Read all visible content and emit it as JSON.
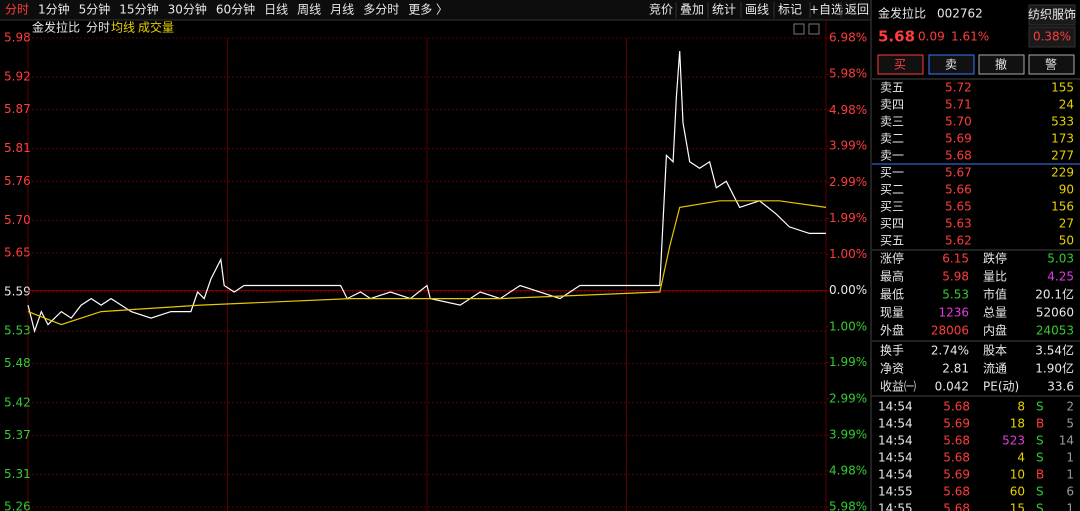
{
  "toolbar": {
    "periods": [
      "分时",
      "1分钟",
      "5分钟",
      "15分钟",
      "30分钟",
      "60分钟",
      "日线",
      "周线",
      "月线",
      "多分时",
      "更多 〉"
    ],
    "tools": [
      "竞价",
      "叠加",
      "统计",
      "画线",
      "标记",
      "+自选",
      "返回"
    ]
  },
  "chart_data": {
    "type": "line",
    "title": "金发拉比",
    "subtitle": "成交量",
    "series": [
      {
        "name": "分时",
        "color": "#ffffff",
        "x": [
          0,
          2,
          4,
          6,
          10,
          13,
          16,
          19,
          22,
          25,
          31,
          37,
          43,
          49,
          51,
          53,
          55,
          58,
          59,
          62,
          65,
          70,
          94,
          96,
          100,
          103,
          109,
          115,
          120,
          121,
          130,
          136,
          142,
          148,
          160,
          166,
          190,
          192,
          194,
          195,
          196,
          197,
          199,
          202,
          205,
          207,
          210,
          214,
          220,
          225,
          229,
          235,
          240
        ],
        "values": [
          5.57,
          5.53,
          5.56,
          5.54,
          5.56,
          5.55,
          5.57,
          5.58,
          5.57,
          5.58,
          5.56,
          5.55,
          5.56,
          5.56,
          5.59,
          5.58,
          5.61,
          5.64,
          5.6,
          5.59,
          5.6,
          5.6,
          5.6,
          5.58,
          5.59,
          5.58,
          5.59,
          5.58,
          5.6,
          5.58,
          5.57,
          5.59,
          5.58,
          5.6,
          5.58,
          5.6,
          5.6,
          5.8,
          5.79,
          5.89,
          5.96,
          5.85,
          5.79,
          5.78,
          5.79,
          5.75,
          5.76,
          5.72,
          5.73,
          5.71,
          5.69,
          5.68,
          5.68
        ]
      },
      {
        "name": "均线",
        "color": "#e6c800",
        "x": [
          0,
          10,
          22,
          52,
          97,
          142,
          190,
          193,
          196,
          208,
          226,
          240
        ],
        "values": [
          5.56,
          5.54,
          5.56,
          5.57,
          5.58,
          5.58,
          5.59,
          5.66,
          5.72,
          5.73,
          5.73,
          5.72
        ]
      }
    ],
    "xlim": [
      0,
      240
    ],
    "ylim": [
      5.26,
      5.98
    ],
    "yticks": [
      {
        "value": 5.98,
        "label": "5.98"
      },
      {
        "value": 5.92,
        "label": "5.92"
      },
      {
        "value": 5.87,
        "label": "5.87"
      },
      {
        "value": 5.81,
        "label": "5.81"
      },
      {
        "value": 5.76,
        "label": "5.76"
      },
      {
        "value": 5.7,
        "label": "5.70"
      },
      {
        "value": 5.65,
        "label": "5.65"
      },
      {
        "value": 5.59,
        "label": "5.59"
      },
      {
        "value": 5.53,
        "label": "5.53"
      },
      {
        "value": 5.48,
        "label": "5.48"
      },
      {
        "value": 5.42,
        "label": "5.42"
      },
      {
        "value": 5.37,
        "label": "5.37"
      },
      {
        "value": 5.31,
        "label": "5.31"
      },
      {
        "value": 5.26,
        "label": "5.26"
      }
    ],
    "y2lim": [
      -5.98,
      6.98
    ],
    "y2ticks": [
      {
        "value": 6.98,
        "label": "6.98%"
      },
      {
        "value": 5.98,
        "label": "5.98%"
      },
      {
        "value": 4.98,
        "label": "4.98%"
      },
      {
        "value": 3.99,
        "label": "3.99%"
      },
      {
        "value": 2.99,
        "label": "2.99%"
      },
      {
        "value": 1.99,
        "label": "1.99%"
      },
      {
        "value": 1.0,
        "label": "1.00%"
      },
      {
        "value": 0,
        "label": "0.00%"
      },
      {
        "value": -1.0,
        "label": "1.00%"
      },
      {
        "value": -1.99,
        "label": "1.99%"
      },
      {
        "value": -2.99,
        "label": "2.99%"
      },
      {
        "value": -3.99,
        "label": "3.99%"
      },
      {
        "value": -4.98,
        "label": "4.98%"
      },
      {
        "value": -5.98,
        "label": "5.98%"
      }
    ],
    "grid": true
  },
  "quote": {
    "name": "金发拉比",
    "code": "002762",
    "sector": "纺织服饰",
    "price": "5.68",
    "change": "0.09",
    "percent": "1.61%",
    "sector_change": "0.38%"
  },
  "buttons": [
    "买",
    "卖",
    "撤",
    "警"
  ],
  "asks": [
    [
      "卖五",
      "5.72",
      "155"
    ],
    [
      "卖四",
      "5.71",
      "24"
    ],
    [
      "卖三",
      "5.70",
      "533"
    ],
    [
      "卖二",
      "5.69",
      "173"
    ],
    [
      "卖一",
      "5.68",
      "277"
    ]
  ],
  "bids": [
    [
      "买一",
      "5.67",
      "229"
    ],
    [
      "买二",
      "5.66",
      "90"
    ],
    [
      "买三",
      "5.65",
      "156"
    ],
    [
      "买四",
      "5.63",
      "27"
    ],
    [
      "买五",
      "5.62",
      "50"
    ]
  ],
  "stats": [
    [
      "涨停",
      "6.15",
      "跌停",
      "5.03"
    ],
    [
      "最高",
      "5.98",
      "量比",
      "4.25"
    ],
    [
      "最低",
      "5.53",
      "市值",
      "20.1亿"
    ],
    [
      "现量",
      "1236",
      "总量",
      "52060"
    ],
    [
      "外盘",
      "28006",
      "内盘",
      "24053"
    ]
  ],
  "fundamentals": [
    [
      "换手",
      "2.74%",
      "股本",
      "3.54亿"
    ],
    [
      "净资",
      "2.81",
      "流通",
      "1.90亿"
    ],
    [
      "收益㈠",
      "0.042",
      "PE(动)",
      "33.6"
    ]
  ],
  "trades": [
    [
      "14:54",
      "5.68",
      "8",
      "S",
      "2"
    ],
    [
      "14:54",
      "5.69",
      "18",
      "B",
      "5"
    ],
    [
      "14:54",
      "5.68",
      "523",
      "S",
      "14"
    ],
    [
      "14:54",
      "5.68",
      "4",
      "S",
      "1"
    ],
    [
      "14:54",
      "5.69",
      "10",
      "B",
      "1"
    ],
    [
      "14:55",
      "5.68",
      "60",
      "S",
      "6"
    ],
    [
      "14:55",
      "5.68",
      "15",
      "S",
      "1"
    ]
  ]
}
